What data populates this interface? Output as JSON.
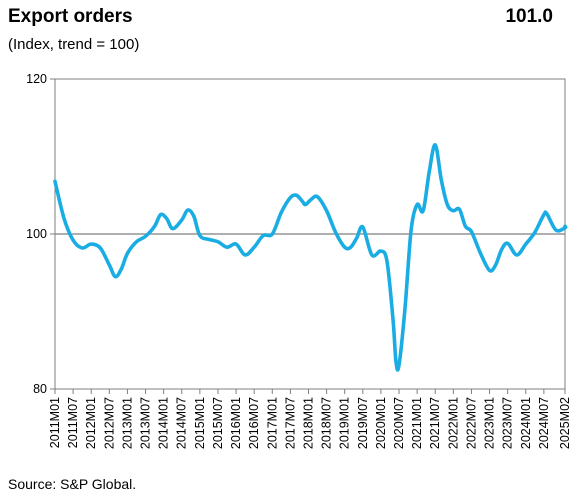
{
  "header": {
    "title": "Export orders",
    "latest_value": "101.0",
    "subtitle": "(Index, trend = 100)"
  },
  "footer": {
    "source": "Source:  S&P Global."
  },
  "colors": {
    "line": "#1aade3",
    "reference_line": "#7f7f7f",
    "axis": "#7f7f7f"
  },
  "chart_data": {
    "type": "line",
    "title": "Export orders",
    "xlabel": "",
    "ylabel": "",
    "ylim": [
      80,
      120
    ],
    "yticks": [
      80,
      100,
      120
    ],
    "reference_line": 100,
    "grid": false,
    "legend": "none",
    "xticks": [
      "2011M01",
      "2011M07",
      "2012M01",
      "2012M07",
      "2013M01",
      "2013M07",
      "2014M01",
      "2014M07",
      "2015M01",
      "2015M07",
      "2016M01",
      "2016M07",
      "2017M01",
      "2017M07",
      "2018M01",
      "2018M07",
      "2019M01",
      "2019M07",
      "2020M01",
      "2020M07",
      "2021M01",
      "2021M07",
      "2022M01",
      "2022M07",
      "2023M01",
      "2023M07",
      "2024M01",
      "2024M07",
      "2025M02"
    ],
    "series": [
      {
        "points": [
          [
            "2011M01",
            106.8
          ],
          [
            "2011M04",
            102.0
          ],
          [
            "2011M07",
            99.2
          ],
          [
            "2011M10",
            98.2
          ],
          [
            "2012M01",
            98.7
          ],
          [
            "2012M04",
            98.2
          ],
          [
            "2012M07",
            96.0
          ],
          [
            "2012M09",
            94.5
          ],
          [
            "2012M11",
            95.5
          ],
          [
            "2013M01",
            97.5
          ],
          [
            "2013M04",
            99.0
          ],
          [
            "2013M07",
            99.7
          ],
          [
            "2013M10",
            101.0
          ],
          [
            "2013M12",
            102.5
          ],
          [
            "2014M02",
            102.0
          ],
          [
            "2014M04",
            100.7
          ],
          [
            "2014M07",
            101.8
          ],
          [
            "2014M09",
            103.1
          ],
          [
            "2014M11",
            102.3
          ],
          [
            "2015M01",
            99.8
          ],
          [
            "2015M04",
            99.3
          ],
          [
            "2015M07",
            99.0
          ],
          [
            "2015M10",
            98.3
          ],
          [
            "2016M01",
            98.7
          ],
          [
            "2016M04",
            97.3
          ],
          [
            "2016M07",
            98.3
          ],
          [
            "2016M10",
            99.8
          ],
          [
            "2017M01",
            100.0
          ],
          [
            "2017M04",
            102.8
          ],
          [
            "2017M07",
            104.7
          ],
          [
            "2017M09",
            105.0
          ],
          [
            "2017M11",
            104.2
          ],
          [
            "2017M12",
            103.8
          ],
          [
            "2018M02",
            104.5
          ],
          [
            "2018M04",
            104.8
          ],
          [
            "2018M07",
            103.0
          ],
          [
            "2018M10",
            100.2
          ],
          [
            "2019M01",
            98.3
          ],
          [
            "2019M03",
            98.3
          ],
          [
            "2019M05",
            99.5
          ],
          [
            "2019M07",
            100.9
          ],
          [
            "2019M10",
            97.3
          ],
          [
            "2020M01",
            97.8
          ],
          [
            "2020M03",
            96.5
          ],
          [
            "2020M05",
            89.0
          ],
          [
            "2020M06",
            83.5
          ],
          [
            "2020M07",
            83.1
          ],
          [
            "2020M09",
            90.5
          ],
          [
            "2020M11",
            100.5
          ],
          [
            "2021M01",
            103.8
          ],
          [
            "2021M03",
            103.0
          ],
          [
            "2021M05",
            108.0
          ],
          [
            "2021M07",
            111.5
          ],
          [
            "2021M09",
            107.0
          ],
          [
            "2021M11",
            103.8
          ],
          [
            "2022M01",
            103.0
          ],
          [
            "2022M03",
            103.2
          ],
          [
            "2022M05",
            101.0
          ],
          [
            "2022M07",
            100.3
          ],
          [
            "2022M10",
            97.5
          ],
          [
            "2023M01",
            95.3
          ],
          [
            "2023M03",
            96.0
          ],
          [
            "2023M05",
            98.0
          ],
          [
            "2023M07",
            98.8
          ],
          [
            "2023M10",
            97.3
          ],
          [
            "2024M01",
            98.7
          ],
          [
            "2024M04",
            100.2
          ],
          [
            "2024M07",
            102.5
          ],
          [
            "2024M08",
            102.6
          ],
          [
            "2024M11",
            100.5
          ],
          [
            "2025M02",
            100.8
          ],
          [
            "2025M02",
            101.0
          ]
        ]
      }
    ]
  }
}
